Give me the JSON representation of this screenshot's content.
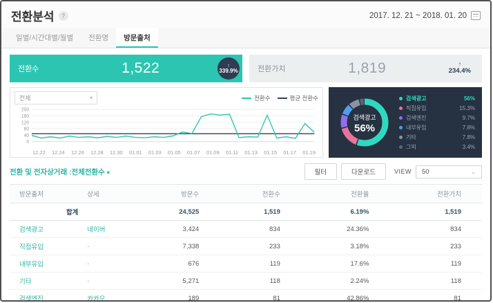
{
  "header": {
    "title": "전환분석",
    "help_label": "?",
    "date_range": "2017. 12. 21 ~ 2018. 01. 20"
  },
  "tabs": [
    {
      "id": "daily",
      "label": "일별/시간대별/월별",
      "active": false
    },
    {
      "id": "conversion-name",
      "label": "전환명",
      "active": false
    },
    {
      "id": "visit-source",
      "label": "방문출처",
      "active": true
    }
  ],
  "kpi": {
    "conversions": {
      "label": "전환수",
      "value": "1,522",
      "delta": "339.9%",
      "delta_arrow": "↑"
    },
    "conversion_value": {
      "label": "전환가치",
      "value": "1,819",
      "delta": "234.4%",
      "delta_arrow": "↑"
    }
  },
  "chart": {
    "filter_value": "전체",
    "legend": [
      {
        "label": "전환수",
        "color": "#2cc5b2"
      },
      {
        "label": "평균 전환수",
        "color": "#33415c"
      }
    ]
  },
  "chart_data": [
    {
      "type": "line",
      "title": "전환수 추이",
      "x_tick_labels": [
        "12.22",
        "12.24",
        "12.26",
        "12.28",
        "12.30",
        "01.01",
        "01.03",
        "01.05",
        "01.07",
        "01.09",
        "01.11",
        "01.13",
        "01.15",
        "01.17",
        "01.19"
      ],
      "series": [
        {
          "name": "전환수",
          "color": "#2cc5b2",
          "values": [
            38,
            22,
            30,
            22,
            34,
            26,
            30,
            24,
            32,
            26,
            34,
            26,
            24,
            30,
            26,
            35,
            60,
            50,
            155,
            172,
            165,
            170,
            25,
            30,
            28,
            165,
            22,
            30,
            20,
            112,
            58
          ]
        },
        {
          "name": "평균 전환수",
          "color": "#33415c",
          "constant": 49
        }
      ],
      "ylim": [
        0,
        200
      ],
      "yticks": [
        0,
        40,
        80,
        120,
        160,
        200
      ],
      "grid": true,
      "legend_position": "top-right"
    },
    {
      "type": "pie",
      "title": "방문출처 비중",
      "categories": [
        "검색광고",
        "직접유입",
        "검색엔진",
        "내부유입",
        "기타",
        "그외"
      ],
      "values": [
        56,
        15.3,
        9.7,
        7.8,
        7.8,
        3.4
      ],
      "colors": [
        "#2fd9bf",
        "#e8739c",
        "#8f6ff0",
        "#4f9df7",
        "#8a93a3",
        "#5c6676"
      ],
      "center_label": "검색광고",
      "center_value": "56%"
    }
  ],
  "donut_legend": [
    {
      "label": "검색광고",
      "percent": "56%",
      "color": "#2fd9bf",
      "highlight": true
    },
    {
      "label": "직접유입",
      "percent": "15.3%",
      "color": "#e8739c",
      "highlight": false
    },
    {
      "label": "검색엔진",
      "percent": "9.7%",
      "color": "#8f6ff0",
      "highlight": false
    },
    {
      "label": "내부유입",
      "percent": "7.8%",
      "color": "#4f9df7",
      "highlight": false
    },
    {
      "label": "기타",
      "percent": "7.8%",
      "color": "#8a93a3",
      "highlight": false
    },
    {
      "label": "그외",
      "percent": "3.4%",
      "color": "#5c6676",
      "highlight": false
    }
  ],
  "table_controls": {
    "title": "전환 및 전자상거래 :전체전환수",
    "title_caret": "▾",
    "filter_button": "필터",
    "download_button": "다운로드",
    "view_label": "VIEW",
    "view_value": "50",
    "view_chevron": "⌄"
  },
  "table": {
    "headers": [
      "방문출처",
      "상세",
      "방문수",
      "전환수",
      "전환율",
      "전환가치"
    ],
    "total_row": {
      "label": "합계",
      "values": [
        "24,525",
        "1,519",
        "6.19%",
        "1,519"
      ]
    },
    "rows": [
      {
        "source": "검색광고",
        "detail": "네이버",
        "visits": "3,424",
        "conversions": "834",
        "rate": "24.36%",
        "value": "834"
      },
      {
        "source": "직접유입",
        "detail": "-",
        "visits": "7,338",
        "conversions": "233",
        "rate": "3.18%",
        "value": "233"
      },
      {
        "source": "내부유입",
        "detail": "-",
        "visits": "676",
        "conversions": "119",
        "rate": "17.6%",
        "value": "119"
      },
      {
        "source": "기타",
        "detail": "-",
        "visits": "5,271",
        "conversions": "118",
        "rate": "2.24%",
        "value": "118"
      },
      {
        "source": "검색엔진",
        "detail": "카카오",
        "visits": "189",
        "conversions": "81",
        "rate": "42.86%",
        "value": "81"
      }
    ]
  },
  "colors": {
    "accent_teal": "#2cc5b2",
    "dark_navy": "#263241",
    "badge_navy": "#2e3d52",
    "kpi_gray_bg": "#eceff0"
  }
}
